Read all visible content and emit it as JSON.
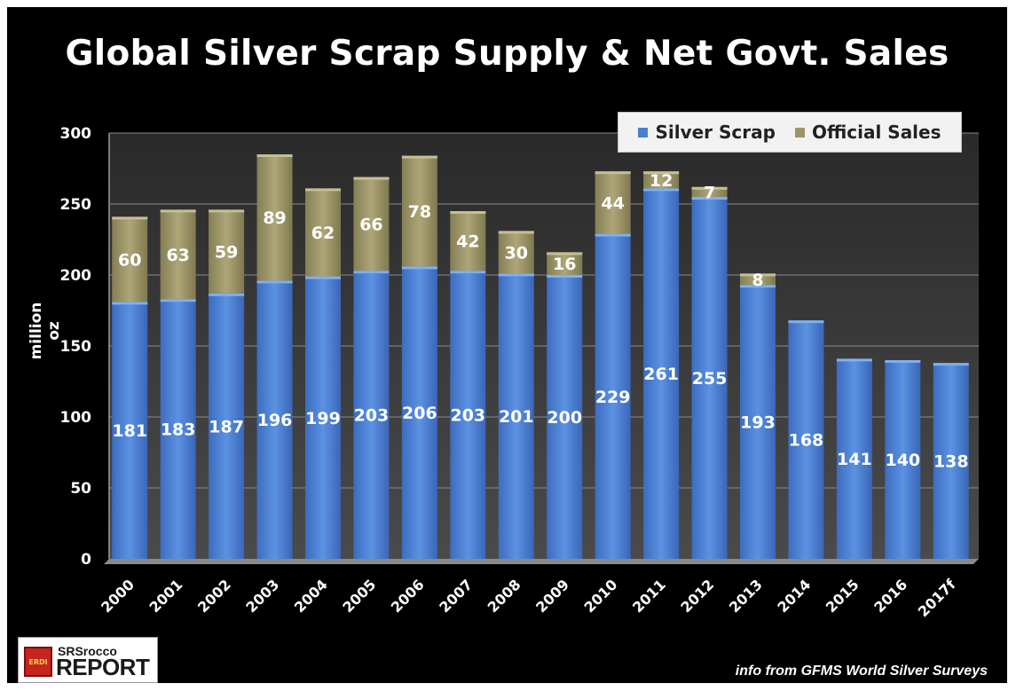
{
  "chart_data": {
    "type": "bar",
    "stacked": true,
    "title": "Global Silver Scrap Supply & Net Govt. Sales",
    "ylabel": "million oz",
    "xlabel": "",
    "ylim": [
      0,
      300
    ],
    "yticks": [
      0,
      50,
      100,
      150,
      200,
      250,
      300
    ],
    "grid": true,
    "legend_position": "top-right",
    "categories": [
      "2000",
      "2001",
      "2002",
      "2003",
      "2004",
      "2005",
      "2006",
      "2007",
      "2008",
      "2009",
      "2010",
      "2011",
      "2012",
      "2013",
      "2014",
      "2015",
      "2016",
      "2017f"
    ],
    "series": [
      {
        "name": "Silver Scrap",
        "color": "#4a7fd0",
        "values": [
          181,
          183,
          187,
          196,
          199,
          203,
          206,
          203,
          201,
          200,
          229,
          261,
          255,
          193,
          168,
          141,
          140,
          138
        ]
      },
      {
        "name": "Official Sales",
        "color": "#9b9468",
        "values": [
          60,
          63,
          59,
          89,
          62,
          66,
          78,
          42,
          30,
          16,
          44,
          12,
          7,
          8,
          null,
          null,
          null,
          null
        ]
      }
    ]
  },
  "footer": {
    "logo_top": "SRSrocco",
    "logo_bottom": "REPORT",
    "logo_badge": "ERDI",
    "source": "info from GFMS World Silver Surveys"
  }
}
